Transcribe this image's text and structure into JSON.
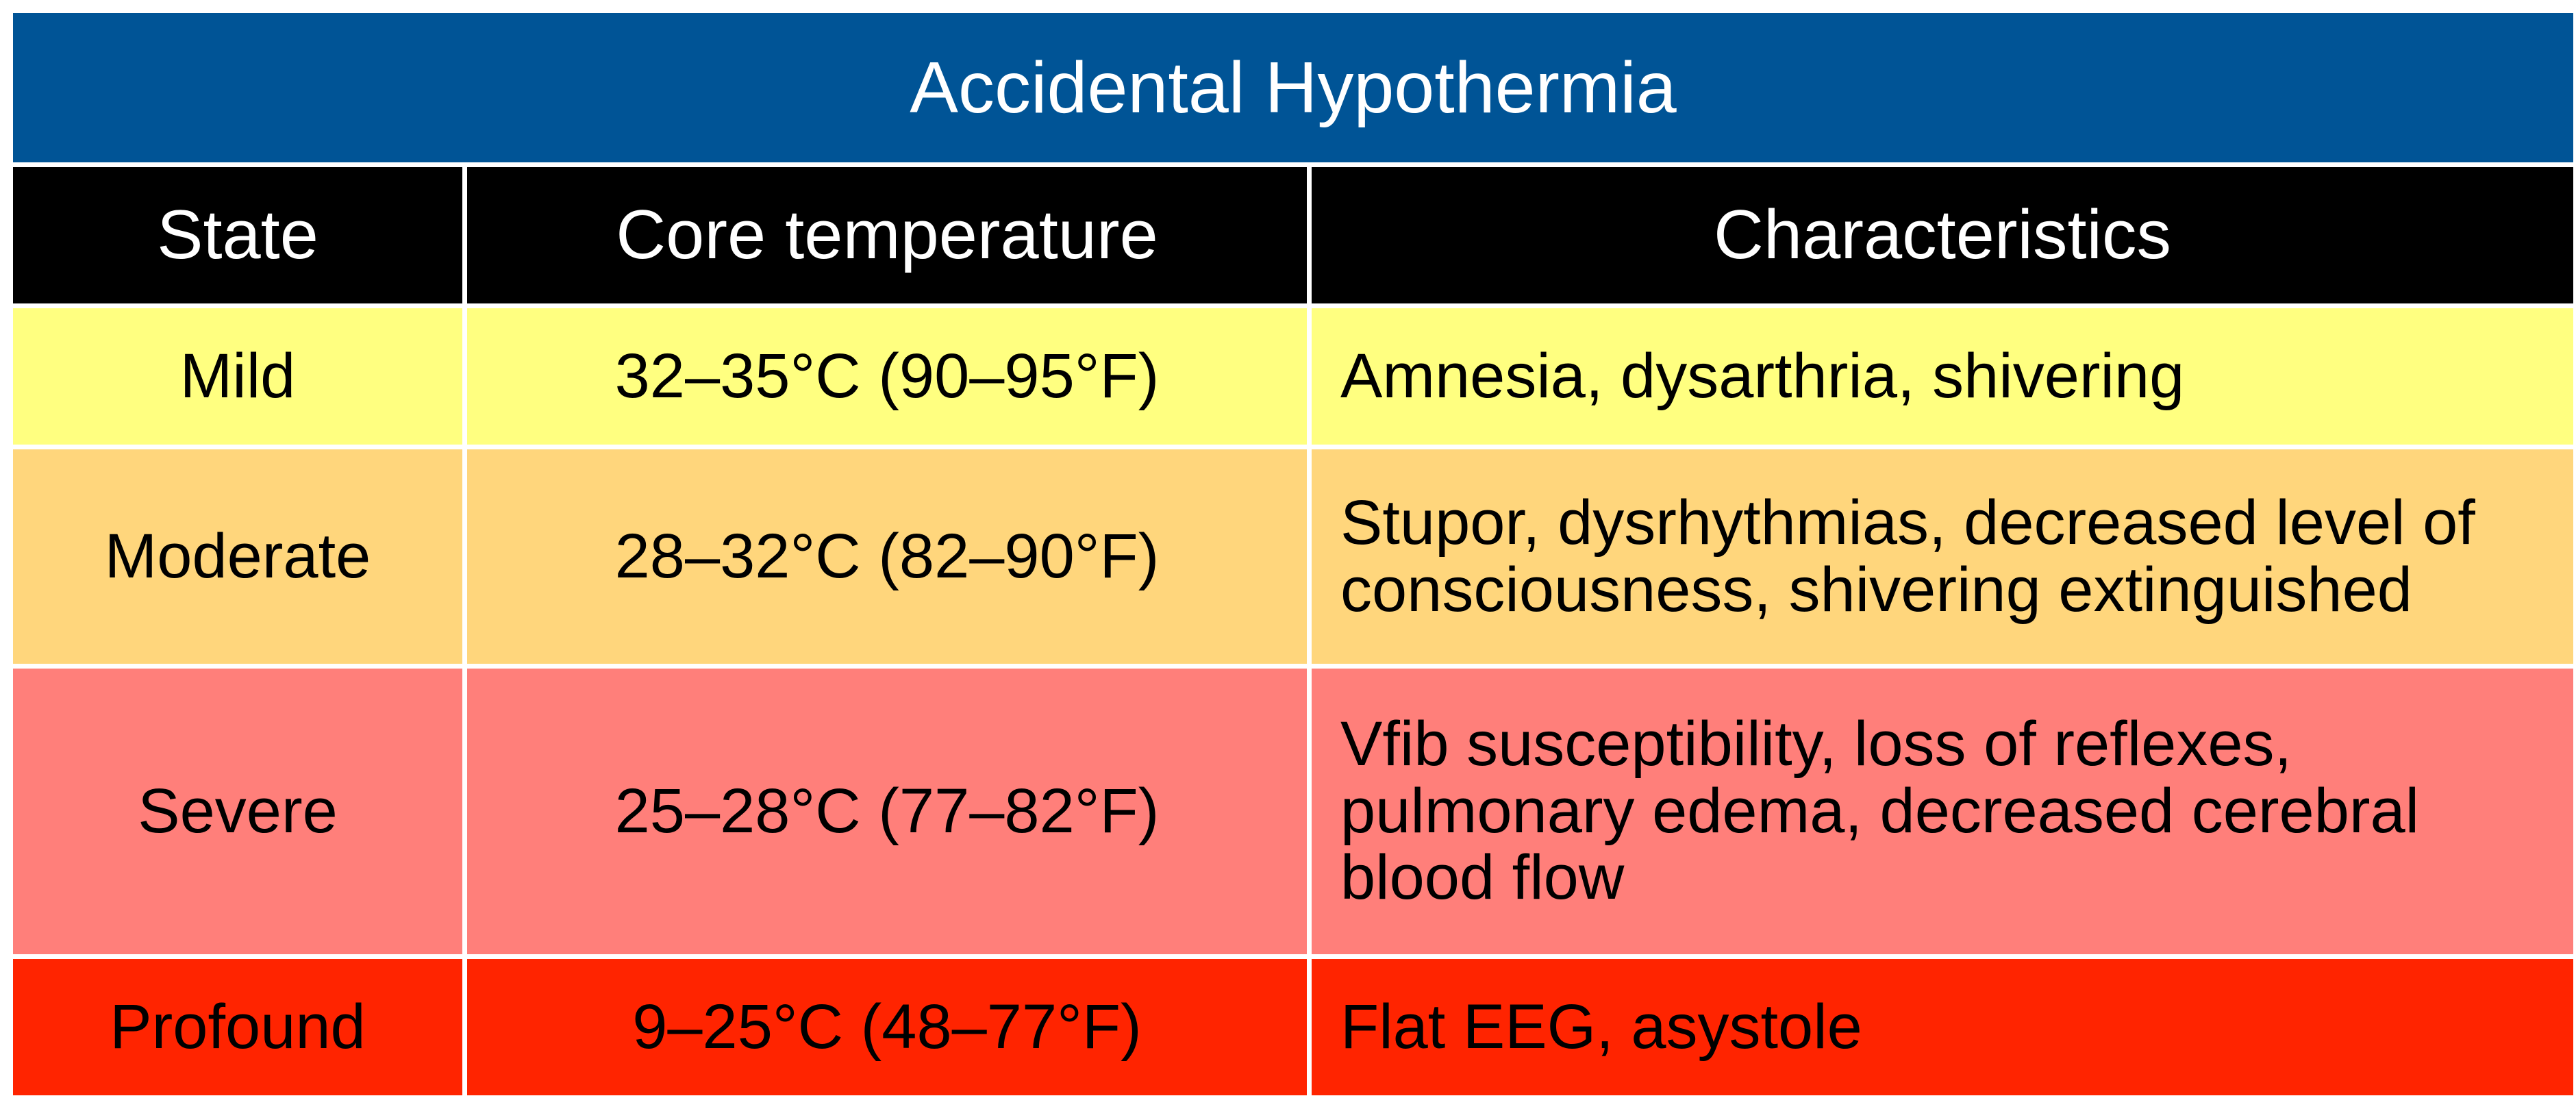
{
  "table": {
    "title": "Accidental Hypothermia",
    "headers": [
      "State",
      "Core temperature",
      "Characteristics"
    ],
    "rows": [
      {
        "state": "Mild",
        "temperature": "32–35°C (90–95°F)",
        "characteristics": "Amnesia, dysarthria, shivering",
        "color": "#FFFF80"
      },
      {
        "state": "Moderate",
        "temperature": "28–32°C (82–90°F)",
        "characteristics": "Stupor, dysrhythmias, decreased level of consciousness, shivering extinguished",
        "color": "#FFD67C"
      },
      {
        "state": "Severe",
        "temperature": "25–28°C (77–82°F)",
        "characteristics": "Vfib susceptibility, loss of reflexes, pulmonary edema, decreased cerebral blood flow",
        "color": "#FF7F7A"
      },
      {
        "state": "Profound",
        "temperature": "9–25°C (48–77°F)",
        "characteristics": "Flat EEG, asystole",
        "color": "#FF2400"
      }
    ]
  },
  "colors": {
    "title_bg": "#005496",
    "header_bg": "#000000",
    "border": "#FFFFFF"
  }
}
